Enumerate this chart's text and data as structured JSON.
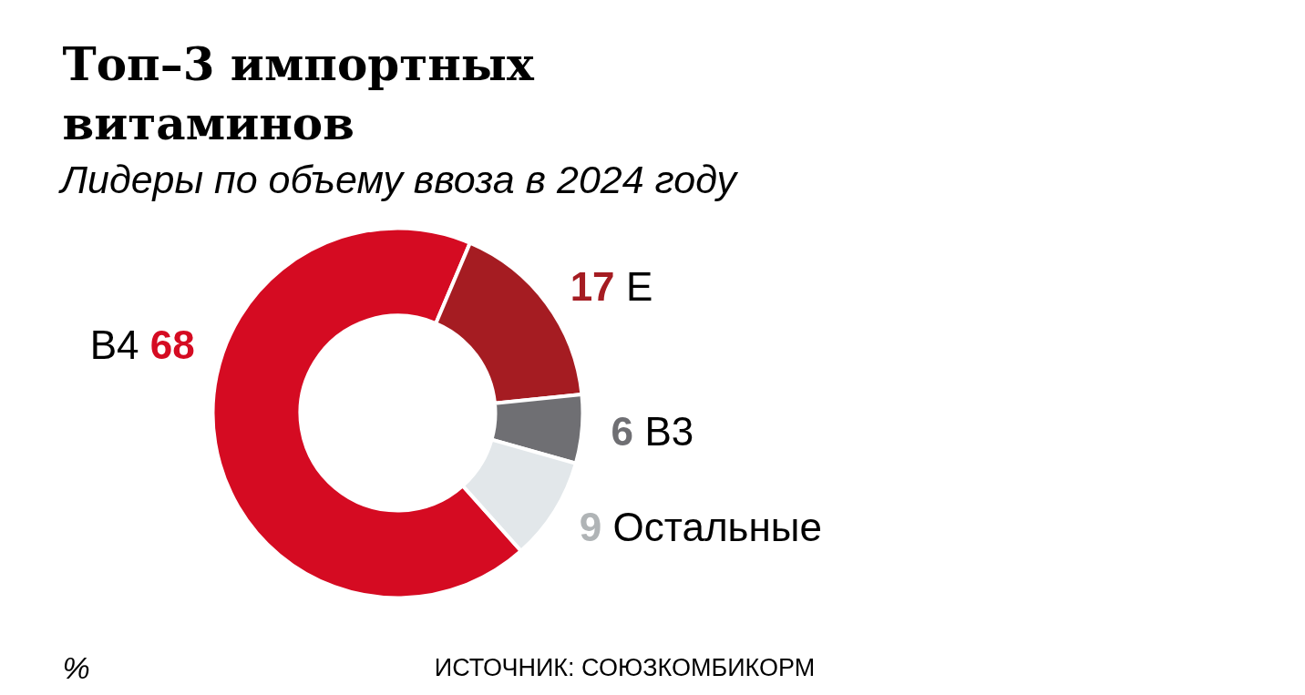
{
  "chart_data": {
    "type": "donut",
    "title": "Топ–3 импортных витаминов",
    "subtitle": "Лидеры по объему ввоза в 2024 году",
    "categories": [
      "B4",
      "E",
      "B3",
      "Остальные"
    ],
    "values": [
      68,
      17,
      6,
      9
    ],
    "colors": [
      "#d50b22",
      "#a51c22",
      "#6f6f73",
      "#e2e7ea"
    ],
    "data_labels": true,
    "annotations": [
      "%",
      "ИСТОЧНИК: СОЮЗКОМБИКОРМ"
    ]
  }
}
